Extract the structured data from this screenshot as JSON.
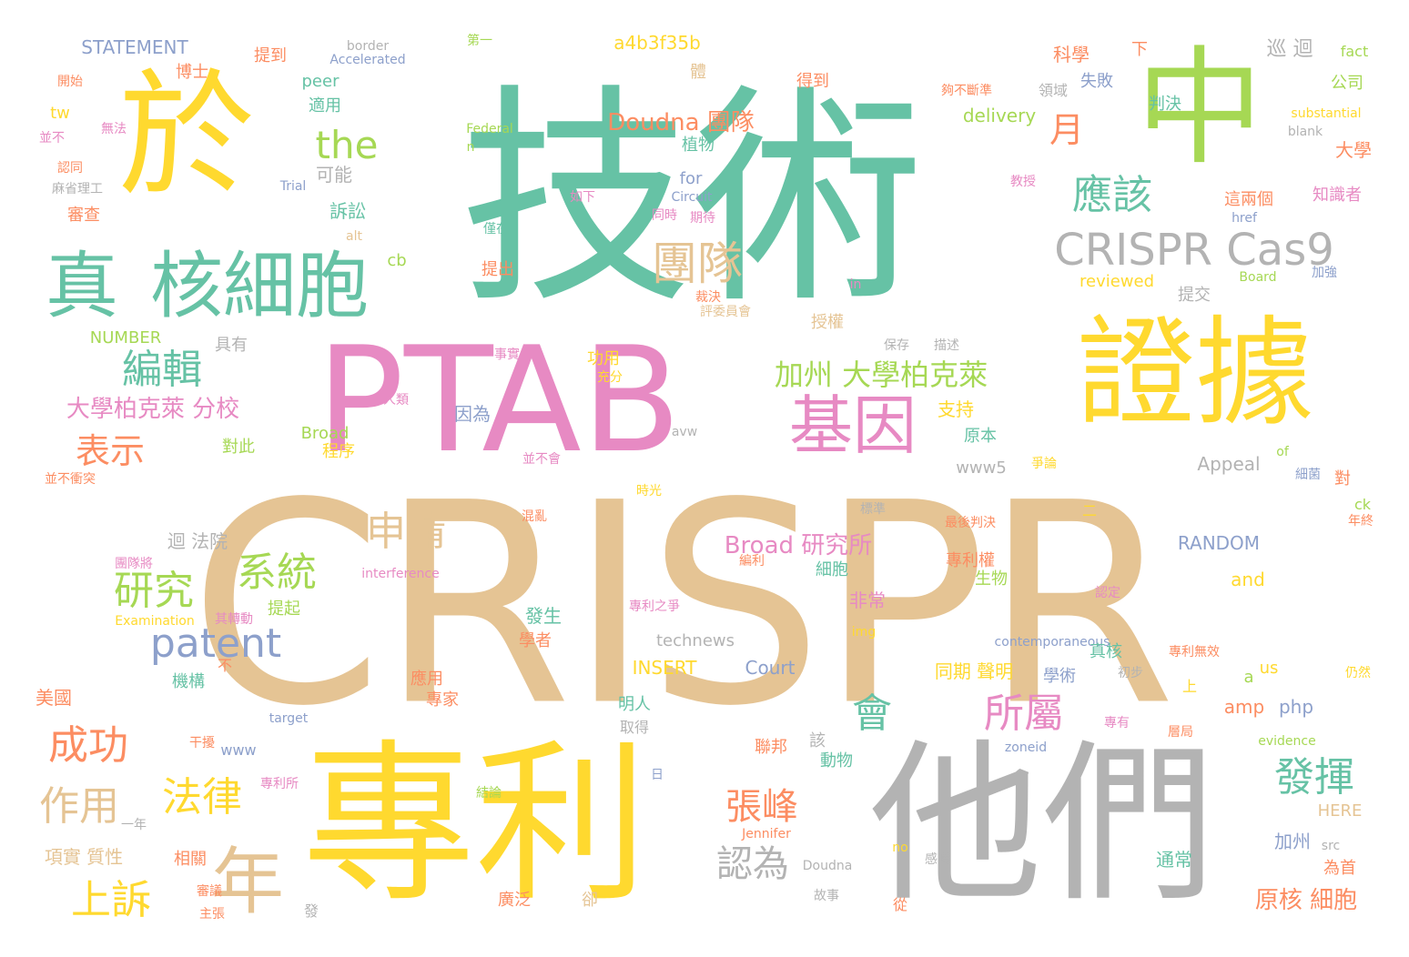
{
  "palette": {
    "teal": "#66c2a5",
    "yellow": "#ffd92f",
    "tan": "#e5c494",
    "pink": "#e78ac3",
    "green": "#a6d854",
    "gray": "#b3b3b3",
    "orange": "#fc8d62",
    "blue": "#8da0cb"
  },
  "words": [
    {
      "text": "CRISPR",
      "color": "tan"
    },
    {
      "text": "技術",
      "color": "teal"
    },
    {
      "text": "專利",
      "color": "yellow"
    },
    {
      "text": "他們",
      "color": "gray"
    },
    {
      "text": "PTAB",
      "color": "pink"
    },
    {
      "text": "於",
      "color": "yellow"
    },
    {
      "text": "中",
      "color": "green"
    },
    {
      "text": "證據",
      "color": "yellow"
    },
    {
      "text": "真",
      "color": "teal"
    },
    {
      "text": "核細胞",
      "color": "teal"
    },
    {
      "text": "CRISPR Cas9",
      "color": "gray"
    },
    {
      "text": "基因",
      "color": "pink"
    },
    {
      "text": "年",
      "color": "tan"
    },
    {
      "text": "團隊",
      "color": "tan"
    },
    {
      "text": "應該",
      "color": "teal"
    },
    {
      "text": "編輯",
      "color": "teal"
    },
    {
      "text": "the",
      "color": "green"
    },
    {
      "text": "加州 大學柏克萊",
      "color": "green"
    },
    {
      "text": "申請",
      "color": "tan"
    },
    {
      "text": "系統",
      "color": "green"
    },
    {
      "text": "研究",
      "color": "green"
    },
    {
      "text": "patent",
      "color": "blue"
    },
    {
      "text": "成功",
      "color": "orange"
    },
    {
      "text": "法律",
      "color": "yellow"
    },
    {
      "text": "作用",
      "color": "tan"
    },
    {
      "text": "上訴",
      "color": "yellow"
    },
    {
      "text": "表示",
      "color": "orange"
    },
    {
      "text": "張峰",
      "color": "orange"
    },
    {
      "text": "所屬",
      "color": "pink"
    },
    {
      "text": "會",
      "color": "teal"
    },
    {
      "text": "發揮",
      "color": "teal"
    },
    {
      "text": "認為",
      "color": "gray"
    },
    {
      "text": "月",
      "color": "orange"
    },
    {
      "text": "Doudna 團隊",
      "color": "orange"
    },
    {
      "text": "大學柏克萊 分校",
      "color": "pink"
    },
    {
      "text": "Broad 研究所",
      "color": "pink"
    },
    {
      "text": "原核 細胞",
      "color": "orange"
    },
    {
      "text": "項實 質性",
      "color": "tan"
    },
    {
      "text": "同期 聲明",
      "color": "yellow"
    },
    {
      "text": "STATEMENT",
      "color": "blue"
    },
    {
      "text": "a4b3f35b",
      "color": "yellow"
    },
    {
      "text": "border",
      "color": "gray"
    },
    {
      "text": "Accelerated",
      "color": "blue"
    },
    {
      "text": "提到",
      "color": "orange"
    },
    {
      "text": "博士",
      "color": "orange"
    },
    {
      "text": "peer",
      "color": "teal"
    },
    {
      "text": "適用",
      "color": "teal"
    },
    {
      "text": "得到",
      "color": "orange"
    },
    {
      "text": "科學",
      "color": "orange"
    },
    {
      "text": "下",
      "color": "orange"
    },
    {
      "text": "巡 迴",
      "color": "gray"
    },
    {
      "text": "fact",
      "color": "green"
    },
    {
      "text": "公司",
      "color": "green"
    },
    {
      "text": "失敗",
      "color": "blue"
    },
    {
      "text": "判決",
      "color": "teal"
    },
    {
      "text": "delivery",
      "color": "green"
    },
    {
      "text": "substantial",
      "color": "yellow"
    },
    {
      "text": "blank",
      "color": "gray"
    },
    {
      "text": "大學",
      "color": "orange"
    },
    {
      "text": "植物",
      "color": "teal"
    },
    {
      "text": "for",
      "color": "blue"
    },
    {
      "text": "Circuit",
      "color": "blue"
    },
    {
      "text": "可能",
      "color": "gray"
    },
    {
      "text": "訴訟",
      "color": "teal"
    },
    {
      "text": "Federal",
      "color": "green"
    },
    {
      "text": "Trial",
      "color": "blue"
    },
    {
      "text": "tw",
      "color": "yellow"
    },
    {
      "text": "知識者",
      "color": "pink"
    },
    {
      "text": "這兩個",
      "color": "orange"
    },
    {
      "text": "提出",
      "color": "orange"
    },
    {
      "text": "cb",
      "color": "green"
    },
    {
      "text": "reviewed",
      "color": "yellow"
    },
    {
      "text": "提交",
      "color": "gray"
    },
    {
      "text": "Board",
      "color": "green"
    },
    {
      "text": "NUMBER",
      "color": "green"
    },
    {
      "text": "具有",
      "color": "gray"
    },
    {
      "text": "授權",
      "color": "tan"
    },
    {
      "text": "支持",
      "color": "yellow"
    },
    {
      "text": "因為",
      "color": "blue"
    },
    {
      "text": "功用",
      "color": "yellow"
    },
    {
      "text": "Broad",
      "color": "green"
    },
    {
      "text": "程序",
      "color": "yellow"
    },
    {
      "text": "對此",
      "color": "green"
    },
    {
      "text": "原本",
      "color": "teal"
    },
    {
      "text": "Appeal",
      "color": "gray"
    },
    {
      "text": "www5",
      "color": "gray"
    },
    {
      "text": "對",
      "color": "orange"
    },
    {
      "text": "迴 法院",
      "color": "gray"
    },
    {
      "text": "RANDOM",
      "color": "blue"
    },
    {
      "text": "and",
      "color": "yellow"
    },
    {
      "text": "專利權",
      "color": "orange"
    },
    {
      "text": "生物",
      "color": "green"
    },
    {
      "text": "細胞",
      "color": "teal"
    },
    {
      "text": "非常",
      "color": "pink"
    },
    {
      "text": "interference",
      "color": "pink"
    },
    {
      "text": "發生",
      "color": "teal"
    },
    {
      "text": "學者",
      "color": "orange"
    },
    {
      "text": "technews",
      "color": "gray"
    },
    {
      "text": "INSERT",
      "color": "yellow"
    },
    {
      "text": "Court",
      "color": "blue"
    },
    {
      "text": "contemporaneous",
      "color": "blue"
    },
    {
      "text": "真核",
      "color": "teal"
    },
    {
      "text": "學術",
      "color": "blue"
    },
    {
      "text": "機構",
      "color": "teal"
    },
    {
      "text": "不",
      "color": "orange"
    },
    {
      "text": "美國",
      "color": "orange"
    },
    {
      "text": "應用",
      "color": "orange"
    },
    {
      "text": "專家",
      "color": "orange"
    },
    {
      "text": "明人",
      "color": "teal"
    },
    {
      "text": "amp",
      "color": "orange"
    },
    {
      "text": "php",
      "color": "blue"
    },
    {
      "text": "us",
      "color": "yellow"
    },
    {
      "text": "a",
      "color": "green"
    },
    {
      "text": "取得",
      "color": "gray"
    },
    {
      "text": "聯邦",
      "color": "orange"
    },
    {
      "text": "www",
      "color": "blue"
    },
    {
      "text": "target",
      "color": "blue"
    },
    {
      "text": "zoneid",
      "color": "blue"
    },
    {
      "text": "evidence",
      "color": "green"
    },
    {
      "text": "動物",
      "color": "teal"
    },
    {
      "text": "HERE",
      "color": "tan"
    },
    {
      "text": "加州",
      "color": "blue"
    },
    {
      "text": "為首",
      "color": "orange"
    },
    {
      "text": "通常",
      "color": "teal"
    },
    {
      "text": "相關",
      "color": "orange"
    },
    {
      "text": "Jennifer",
      "color": "orange"
    },
    {
      "text": "Doudna",
      "color": "gray"
    },
    {
      "text": "no",
      "color": "yellow"
    },
    {
      "text": "src",
      "color": "gray"
    },
    {
      "text": "從",
      "color": "orange"
    },
    {
      "text": "廣泛",
      "color": "orange"
    },
    {
      "text": "卻",
      "color": "tan"
    },
    {
      "text": "故事",
      "color": "gray"
    },
    {
      "text": "發",
      "color": "gray"
    },
    {
      "text": "主張",
      "color": "orange"
    },
    {
      "text": "審查",
      "color": "orange"
    },
    {
      "text": "ck",
      "color": "green"
    },
    {
      "text": "of",
      "color": "green"
    },
    {
      "text": "二",
      "color": "yellow"
    },
    {
      "text": "標準",
      "color": "gray"
    },
    {
      "text": "最後判決",
      "color": "orange"
    },
    {
      "text": "Examination",
      "color": "yellow"
    },
    {
      "text": "提起",
      "color": "green"
    },
    {
      "text": "專利之爭",
      "color": "pink"
    },
    {
      "text": "初步",
      "color": "gray"
    },
    {
      "text": "專利無效",
      "color": "orange"
    },
    {
      "text": "仍然",
      "color": "yellow"
    },
    {
      "text": "alt",
      "color": "tan"
    },
    {
      "text": "href",
      "color": "blue"
    },
    {
      "text": "in",
      "color": "pink"
    },
    {
      "text": "n",
      "color": "green"
    },
    {
      "text": "img",
      "color": "yellow"
    },
    {
      "text": "avw",
      "color": "gray"
    },
    {
      "text": "日",
      "color": "blue"
    },
    {
      "text": "上",
      "color": "yellow"
    },
    {
      "text": "該",
      "color": "gray"
    },
    {
      "text": "體",
      "color": "tan"
    },
    {
      "text": "第一",
      "color": "green"
    },
    {
      "text": "開始",
      "color": "orange"
    },
    {
      "text": "無法",
      "color": "pink"
    },
    {
      "text": "並不",
      "color": "pink"
    },
    {
      "text": "認同",
      "color": "orange"
    },
    {
      "text": "麻省理工",
      "color": "gray"
    },
    {
      "text": "領域",
      "color": "gray"
    },
    {
      "text": "教授",
      "color": "pink"
    },
    {
      "text": "期待",
      "color": "pink"
    },
    {
      "text": "如下",
      "color": "pink"
    },
    {
      "text": "僅在",
      "color": "teal"
    },
    {
      "text": "描述",
      "color": "gray"
    },
    {
      "text": "事實",
      "color": "pink"
    },
    {
      "text": "充分",
      "color": "yellow"
    },
    {
      "text": "人類",
      "color": "pink"
    },
    {
      "text": "並不會",
      "color": "pink"
    },
    {
      "text": "並不衝突",
      "color": "orange"
    },
    {
      "text": "時光",
      "color": "yellow"
    },
    {
      "text": "爭論",
      "color": "yellow"
    },
    {
      "text": "混亂",
      "color": "orange"
    },
    {
      "text": "團隊將",
      "color": "pink"
    },
    {
      "text": "其轉動",
      "color": "pink"
    },
    {
      "text": "編利",
      "color": "orange"
    },
    {
      "text": "專利所",
      "color": "pink"
    },
    {
      "text": "審議",
      "color": "orange"
    },
    {
      "text": "干擾",
      "color": "orange"
    },
    {
      "text": "一年",
      "color": "gray"
    },
    {
      "text": "認定",
      "color": "pink"
    },
    {
      "text": "專有",
      "color": "pink"
    },
    {
      "text": "層局",
      "color": "orange"
    },
    {
      "text": "細菌",
      "color": "blue"
    },
    {
      "text": "年終",
      "color": "orange"
    },
    {
      "text": "感嘆",
      "color": "gray"
    },
    {
      "text": "結論",
      "color": "green"
    },
    {
      "text": "保存",
      "color": "gray"
    },
    {
      "text": "加強",
      "color": "blue"
    },
    {
      "text": "裁決",
      "color": "orange"
    },
    {
      "text": "評委員會",
      "color": "tan"
    },
    {
      "text": "同時",
      "color": "pink"
    },
    {
      "text": "夠不斷準",
      "color": "orange"
    }
  ]
}
